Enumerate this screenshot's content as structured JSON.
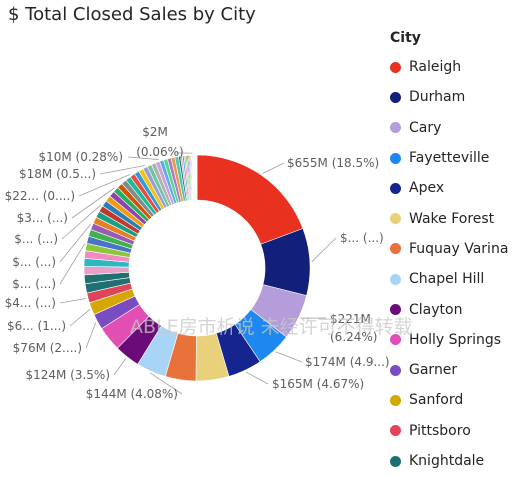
{
  "visual": {
    "title": "$ Total Closed Sales by City"
  },
  "watermark": "ABLE房市析说 未经许可不得转载",
  "legend": {
    "title": "City",
    "items": [
      {
        "label": "Raleigh",
        "color": "#e8321f"
      },
      {
        "label": "Durham",
        "color": "#12207a"
      },
      {
        "label": "Cary",
        "color": "#b59ddc"
      },
      {
        "label": "Fayetteville",
        "color": "#1e88f0"
      },
      {
        "label": "Apex",
        "color": "#15248f"
      },
      {
        "label": "Wake Forest",
        "color": "#e9d07a"
      },
      {
        "label": "Fuquay Varina",
        "color": "#e8723a"
      },
      {
        "label": "Chapel Hill",
        "color": "#a8d4f7"
      },
      {
        "label": "Clayton",
        "color": "#6b0b7a"
      },
      {
        "label": "Holly Springs",
        "color": "#e24fb4"
      },
      {
        "label": "Garner",
        "color": "#7a4cc2"
      },
      {
        "label": "Sanford",
        "color": "#d4a800"
      },
      {
        "label": "Pittsboro",
        "color": "#e0445a"
      },
      {
        "label": "Knightdale",
        "color": "#1f7070"
      }
    ]
  },
  "chart_data": {
    "type": "donut",
    "title": "$ Total Closed Sales by City",
    "legend_title": "City",
    "legend_position": "right",
    "slices": [
      {
        "city": "Raleigh",
        "value_millions": 655,
        "percent": 18.5,
        "label": "$655M (18.5%)",
        "color": "#e8321f"
      },
      {
        "city": "Durham",
        "value_millions": 325,
        "percent": 9.2,
        "label": "$... (...)",
        "color": "#12207a"
      },
      {
        "city": "Cary",
        "value_millions": 221,
        "percent": 6.24,
        "label": "$221M (6.24%)",
        "color": "#b59ddc"
      },
      {
        "city": "Fayetteville",
        "value_millions": 174,
        "percent": 4.9,
        "label": "$174M (4.9...)",
        "color": "#1e88f0"
      },
      {
        "city": "Apex",
        "value_millions": 165,
        "percent": 4.67,
        "label": "$165M (4.67%)",
        "color": "#15248f"
      },
      {
        "city": "Wake Forest",
        "value_millions": 160,
        "percent": 4.5,
        "label": "",
        "color": "#e9d07a"
      },
      {
        "city": "Fuquay Varina",
        "value_millions": 148,
        "percent": 4.2,
        "label": "",
        "color": "#e8723a"
      },
      {
        "city": "Chapel Hill",
        "value_millions": 144,
        "percent": 4.08,
        "label": "$144M (4.08%)",
        "color": "#a8d4f7"
      },
      {
        "city": "Clayton",
        "value_millions": 124,
        "percent": 3.5,
        "label": "$124M (3.5%)",
        "color": "#6b0b7a"
      },
      {
        "city": "Holly Springs",
        "value_millions": 120,
        "percent": 3.4,
        "label": "",
        "color": "#e24fb4"
      },
      {
        "city": "Garner",
        "value_millions": 76,
        "percent": 2.15,
        "label": "$76M (2....)",
        "color": "#7a4cc2"
      },
      {
        "city": "Sanford",
        "value_millions": 60,
        "percent": 1.7,
        "label": "$6... (1...)",
        "color": "#d4a800"
      },
      {
        "city": "Pittsboro",
        "value_millions": 48,
        "percent": 1.36,
        "label": "$4... (...)",
        "color": "#e0445a"
      },
      {
        "city": "Knightdale",
        "value_millions": 45,
        "percent": 1.27,
        "label": "",
        "color": "#1f7070"
      }
    ],
    "other_slices_percent": [
      1.2,
      1.15,
      1.1,
      1.05,
      1.0,
      0.98,
      0.95,
      0.92,
      0.9,
      0.88,
      0.86,
      0.84,
      0.82,
      0.8,
      0.78,
      0.76,
      0.74,
      0.72,
      0.7,
      0.68,
      0.66,
      0.64,
      0.62,
      0.6,
      0.58,
      0.56,
      0.54,
      0.52,
      0.5,
      0.51,
      0.28,
      0.25,
      0.23,
      0.21,
      0.19,
      0.17,
      0.15,
      0.13,
      0.12,
      0.1,
      0.09,
      0.08,
      0.07,
      0.06,
      0.06,
      0.05,
      0.05,
      0.04,
      0.04,
      0.03,
      0.03,
      0.03,
      0.02,
      0.02,
      0.02
    ],
    "other_colors": [
      "#1f7070",
      "#e8a0c8",
      "#2db8c0",
      "#f28cc0",
      "#8cc63f",
      "#4a73c8",
      "#3cb44b",
      "#9b59b6",
      "#e67e22",
      "#16a085",
      "#c0392b",
      "#2980b9",
      "#f39c12",
      "#8e44ad",
      "#27ae60",
      "#d35400",
      "#7f8c8d",
      "#1abc9c",
      "#e74c3c",
      "#3498db",
      "#f1c40f",
      "#9b9bd8",
      "#6ec6a0",
      "#b0b0b0",
      "#c7a0e0",
      "#5dade2",
      "#58d68d",
      "#af7ac5",
      "#eb984e",
      "#48c9b0"
    ],
    "small_slice_labels": [
      "$2M (0.06%)",
      "$10M (0.28%)",
      "$18M (0.5...)",
      "$22... (0....)",
      "$3... (...)",
      "$... (...)",
      "$... (...)",
      "$... (...)",
      "$6... (1...)"
    ]
  }
}
